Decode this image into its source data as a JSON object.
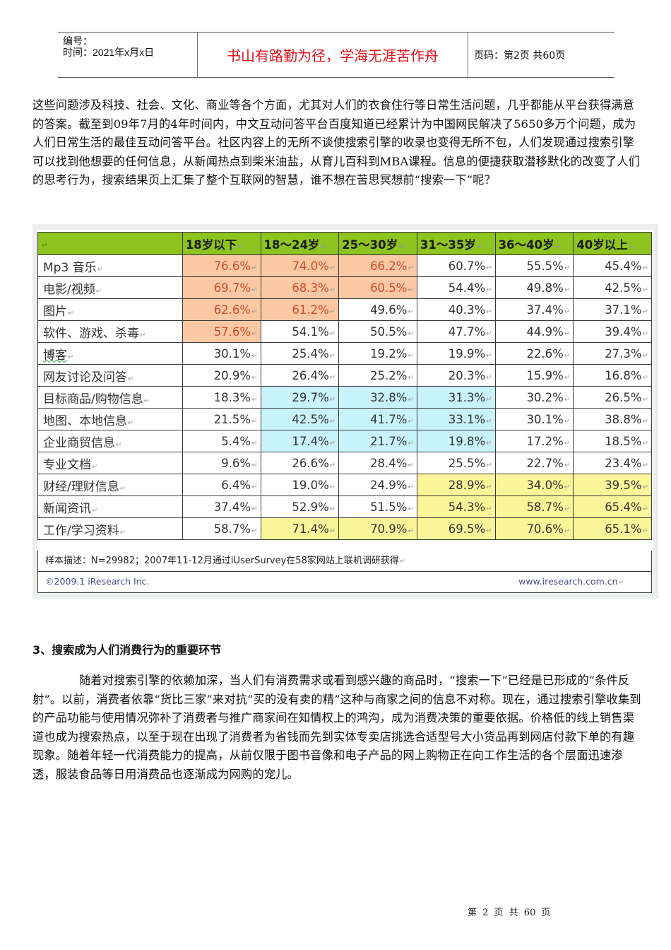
{
  "header": {
    "number_label": "编号：",
    "time_label": "时间：2021年x月x日",
    "motto": "书山有路勤为径，学海无涯苦作舟",
    "page_label": "页码：第2页 共60页"
  },
  "paragraph1": "这些问题涉及科技、社会、文化、商业等各个方面，尤其对人们的衣食住行等日常生活问题，几乎都能从平台获得满意的答案。截至到09年7月的4年时间内，中文互动问答平台百度知道已经累计为中国网民解决了5650多万个问题，成为人们日常生活的最佳互动问答平台。社区内容上的无所不谈使搜索引擎的收录也变得无所不包，人们发现通过搜索引擎可以找到他想要的任何信息，从新闻热点到柴米油盐，从育儿百科到MBA课程。信息的便捷获取潜移默化的改变了人们的思考行为，搜索结果页上汇集了整个互联网的智慧，谁不想在苦思冥想前“搜索一下”呢？",
  "table": {
    "columns": [
      "18岁以下",
      "18～24岁",
      "25～30岁",
      "31～35岁",
      "36～40岁",
      "40岁以上"
    ],
    "rows": [
      {
        "label": "Mp3 音乐",
        "values": [
          "76.6%",
          "74.0%",
          "66.2%",
          "60.7%",
          "55.5%",
          "45.4%"
        ]
      },
      {
        "label": "电影/视频",
        "values": [
          "69.7%",
          "68.3%",
          "60.5%",
          "54.4%",
          "49.8%",
          "42.5%"
        ]
      },
      {
        "label": "图片",
        "values": [
          "62.6%",
          "61.2%",
          "49.6%",
          "40.3%",
          "37.4%",
          "37.1%"
        ]
      },
      {
        "label": "软件、游戏、杀毒",
        "values": [
          "57.6%",
          "54.1%",
          "50.5%",
          "47.7%",
          "44.9%",
          "39.4%"
        ]
      },
      {
        "label": "博客",
        "values": [
          "30.1%",
          "25.4%",
          "19.2%",
          "19.9%",
          "22.6%",
          "27.3%"
        ]
      },
      {
        "label": "网友讨论及问答",
        "values": [
          "20.9%",
          "26.4%",
          "25.2%",
          "20.3%",
          "15.9%",
          "16.8%"
        ]
      },
      {
        "label": "目标商品/购物信息",
        "values": [
          "18.3%",
          "29.7%",
          "32.8%",
          "31.3%",
          "30.2%",
          "26.5%"
        ]
      },
      {
        "label": "地图、本地信息",
        "values": [
          "21.5%",
          "42.5%",
          "41.7%",
          "33.1%",
          "30.1%",
          "38.8%"
        ]
      },
      {
        "label": "企业商贸信息",
        "values": [
          "5.4%",
          "17.4%",
          "21.7%",
          "19.8%",
          "17.2%",
          "18.5%"
        ]
      },
      {
        "label": "专业文档",
        "values": [
          "9.6%",
          "26.6%",
          "28.4%",
          "25.5%",
          "22.7%",
          "23.4%"
        ]
      },
      {
        "label": "财经/理财信息",
        "values": [
          "6.4%",
          "19.0%",
          "24.9%",
          "28.9%",
          "34.0%",
          "39.5%"
        ]
      },
      {
        "label": "新闻资讯",
        "values": [
          "37.4%",
          "52.9%",
          "51.5%",
          "54.3%",
          "58.7%",
          "65.4%"
        ]
      },
      {
        "label": "工作/学习资料",
        "values": [
          "58.7%",
          "71.4%",
          "70.9%",
          "69.5%",
          "70.6%",
          "65.1%"
        ]
      }
    ],
    "highlight_colors": {
      "orange": "#fac9a4",
      "blue": "#c9f3fb",
      "yellow": "#fbf59a",
      "header_green": "#8fc31f"
    },
    "sample_note": "样本描述：N=29982；2007年11-12月通过iUserSurvey在58家网站上联机调研获得",
    "copyright": "©2009.1 iResearch Inc.",
    "website": "www.iresearch.com.cn"
  },
  "section3": {
    "heading": "3、搜索成为人们消费行为的重要环节",
    "paragraph": "随着对搜索引擎的依赖加深，当人们有消费需求或看到感兴趣的商品时，“搜索一下”已经是已形成的“条件反射”。以前，消费者依靠“货比三家”来对抗“买的没有卖的精”这种与商家之间的信息不对称。现在，通过搜索引擎收集到的产品功能与使用情况弥补了消费者与推广商家间在知情权上的鸿沟，成为消费决策的重要依据。价格低的线上销售渠道也成为搜索热点，以至于现在出现了消费者为省钱而先到实体专卖店挑选合适型号大小货品再到网店付款下单的有趣现象。随着年轻一代消费能力的提高，从前仅限于图书音像和电子产品的网上购物正在向工作生活的各个层面迅速渗透，服装食品等日用消费品也逐渐成为网购的宠儿。"
  },
  "footer": {
    "page_text": "第 2 页 共 60 页"
  }
}
